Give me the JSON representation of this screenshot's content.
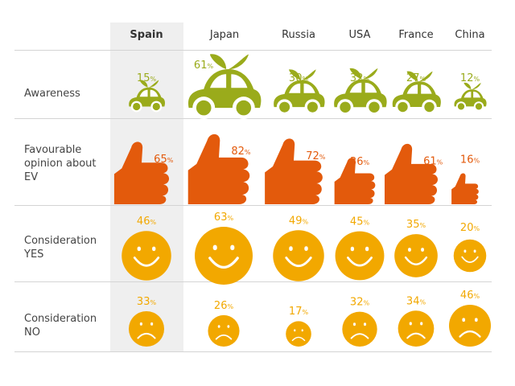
{
  "columns": [
    "Spain",
    "Japan",
    "Russia",
    "USA",
    "France",
    "China"
  ],
  "highlighted_column": "Spain",
  "rows": [
    {
      "label": "Awareness",
      "icon": "car-icon"
    },
    {
      "label": "Favourable opinion about EV",
      "icon": "thumbs-up-icon"
    },
    {
      "label": "Consideration YES",
      "icon": "smiley-face-icon"
    },
    {
      "label": "Consideration NO",
      "icon": "sad-face-icon"
    }
  ],
  "colors": {
    "awareness": "#9aab1b",
    "favourable": "#e35a0c",
    "consideration_yes": "#f2a800",
    "consideration_no": "#f2a800",
    "highlight_band": "#efefef"
  },
  "chart_data": {
    "type": "table",
    "columns": [
      "Spain",
      "Japan",
      "Russia",
      "USA",
      "France",
      "China"
    ],
    "unit": "%",
    "series": [
      {
        "name": "Awareness",
        "values": [
          15,
          61,
          30,
          32,
          27,
          12
        ]
      },
      {
        "name": "Favourable opinion about EV",
        "values": [
          65,
          82,
          72,
          36,
          61,
          16
        ]
      },
      {
        "name": "Consideration YES",
        "values": [
          46,
          63,
          49,
          45,
          35,
          20
        ]
      },
      {
        "name": "Consideration NO",
        "values": [
          33,
          26,
          17,
          32,
          34,
          46
        ]
      }
    ]
  }
}
